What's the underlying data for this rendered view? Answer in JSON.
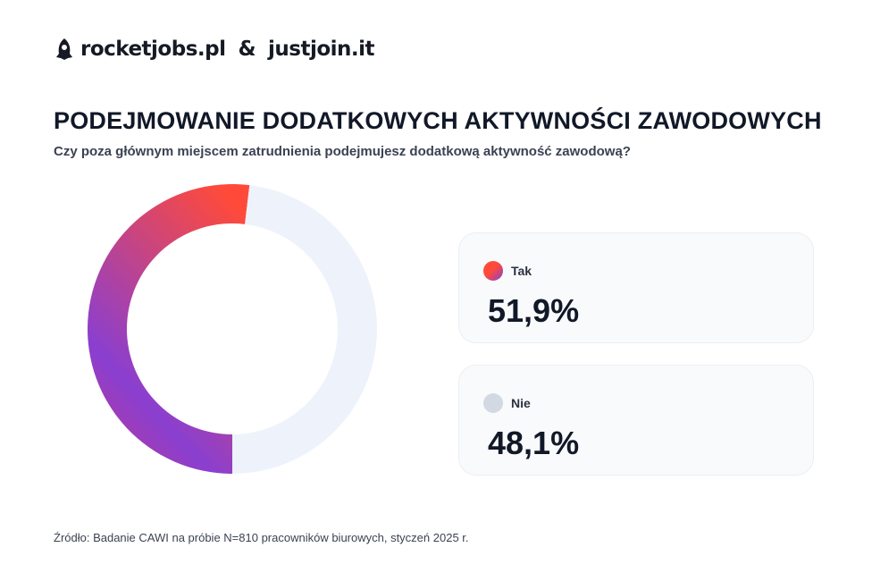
{
  "logo": {
    "brand1": "rocketjobs.pl",
    "amp": "&",
    "brand2": "justjoin.it"
  },
  "title": "PODEJMOWANIE DODATKOWYCH AKTYWNOŚCI ZAWODOWYCH",
  "subtitle": "Czy poza głównym miejscem zatrudnienia podejmujesz dodatkową aktywność zawodową?",
  "chart_data": {
    "type": "pie",
    "donut": true,
    "title": "PODEJMOWANIE DODATKOWYCH AKTYWNOŚCI ZAWODOWYCH",
    "categories": [
      "Tak",
      "Nie"
    ],
    "values": [
      51.9,
      48.1
    ],
    "labels": [
      "51,9%",
      "48,1%"
    ],
    "colors": [
      "#ff4a3a",
      "#eef2fb"
    ],
    "gradient": [
      "#ff4a3a",
      "#8a3fd0"
    ],
    "legend": "right"
  },
  "source": "Źródło: Badanie CAWI na próbie N=810 pracowników biurowych, styczeń 2025 r."
}
